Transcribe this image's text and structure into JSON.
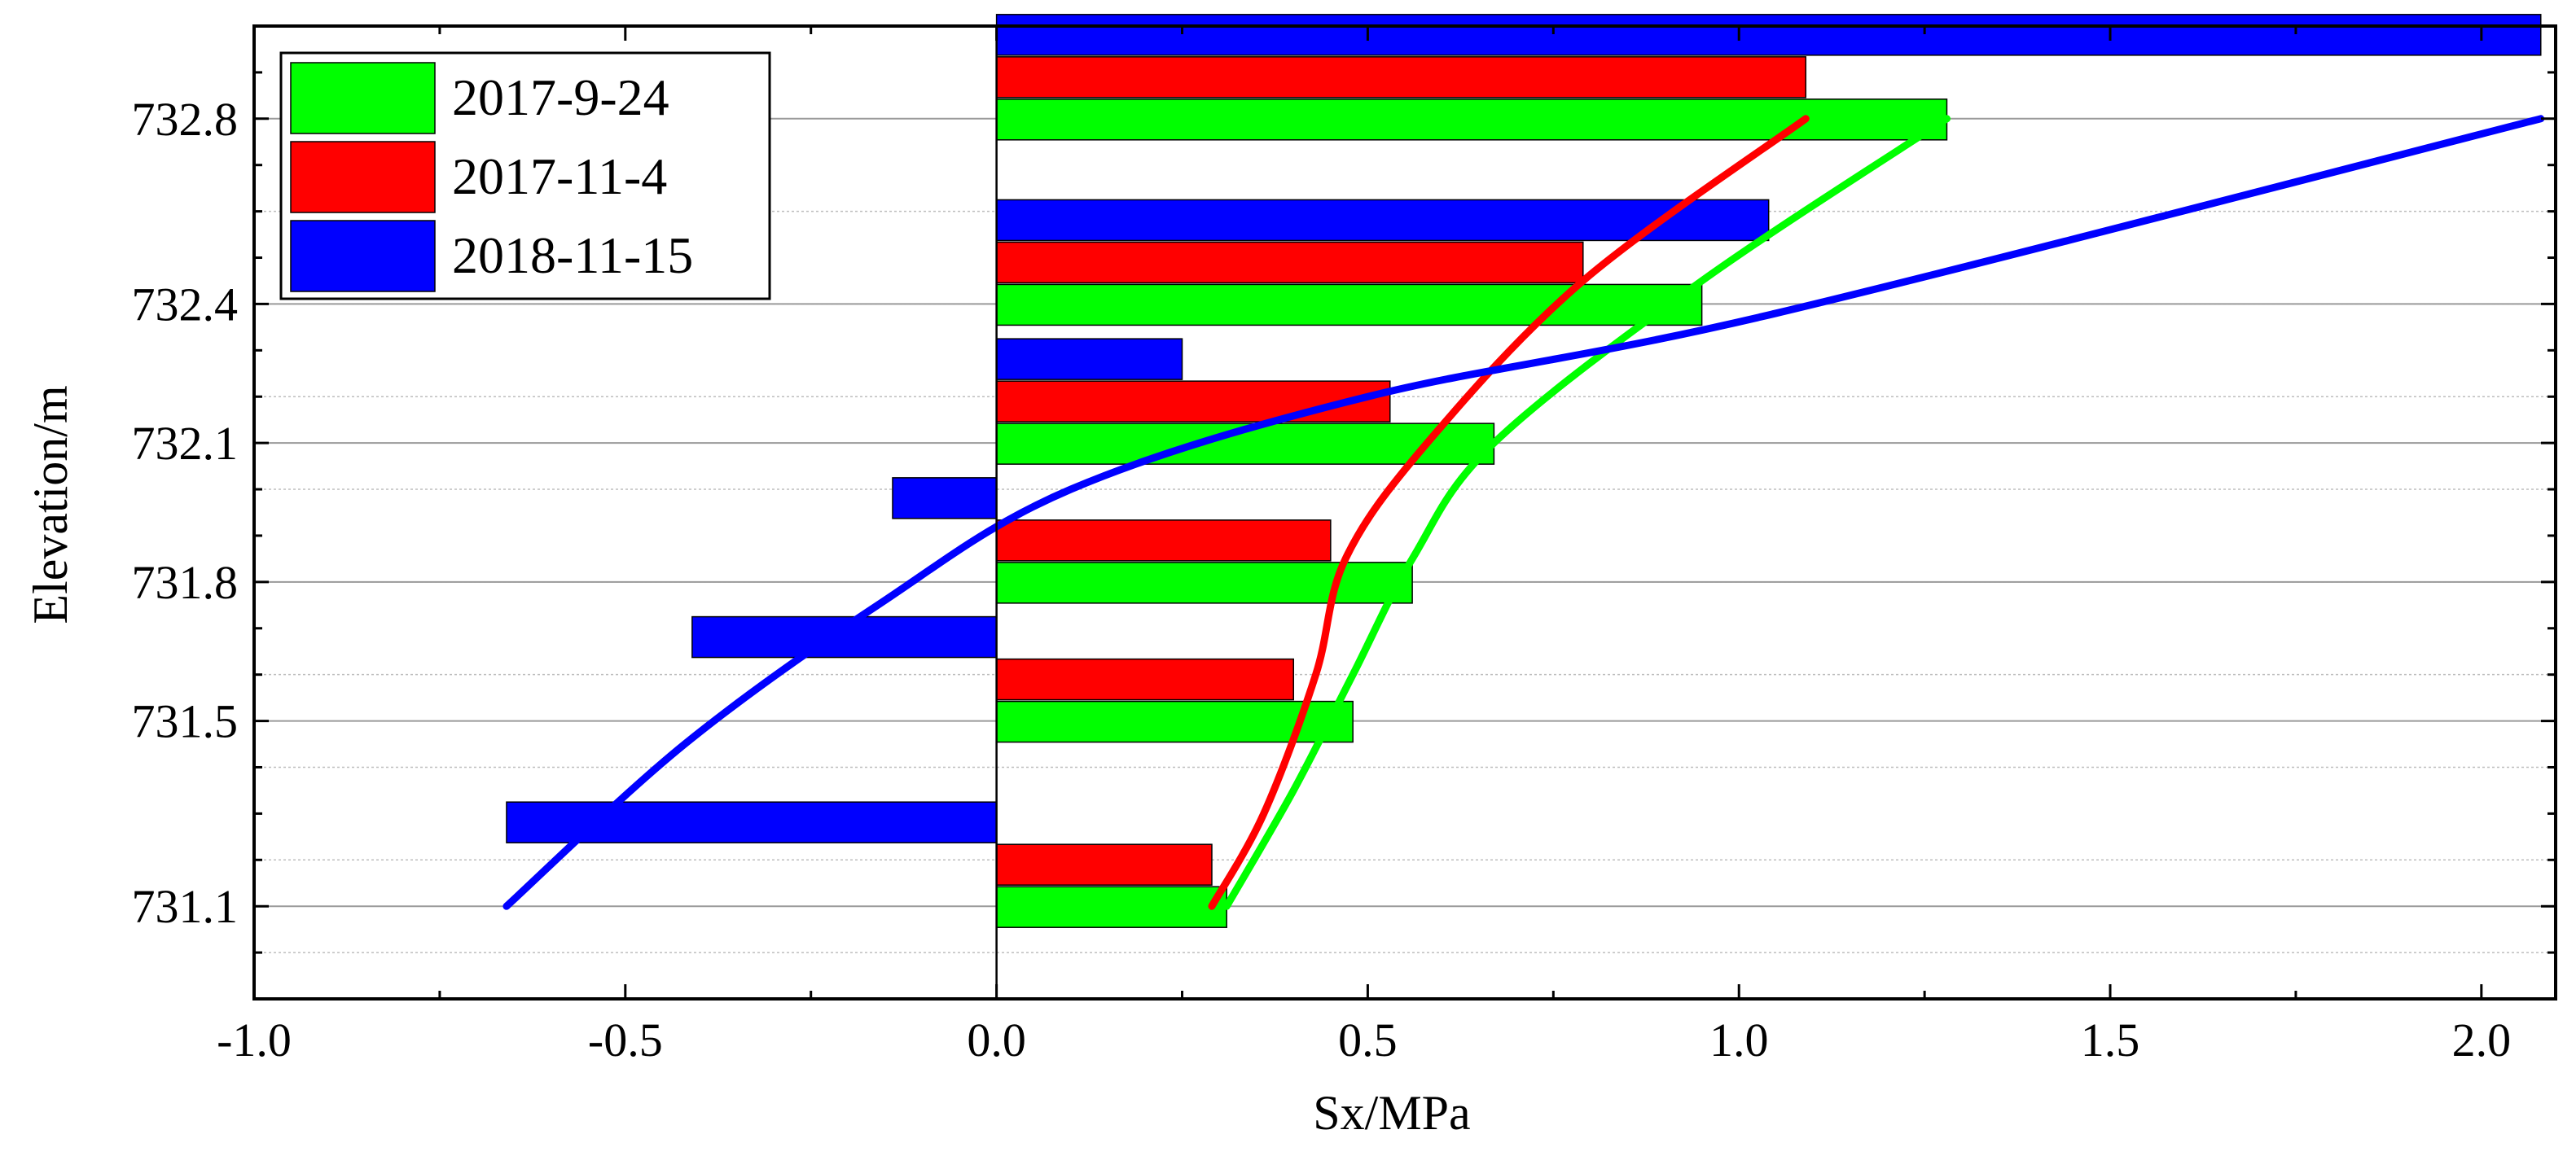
{
  "chart_data": {
    "type": "bar",
    "orientation": "horizontal",
    "title": "",
    "xlabel": "Sx/MPa",
    "ylabel": "Elevation/m",
    "xlim": [
      -1.0,
      2.1
    ],
    "ylim": [
      730.9,
      733.0
    ],
    "x_ticks": [
      "-1.0",
      "-0.5",
      "0.0",
      "0.5",
      "1.0",
      "1.5",
      "2.0"
    ],
    "y_ticks": [
      "731.1",
      "731.5",
      "731.8",
      "732.1",
      "732.4",
      "732.8"
    ],
    "grid": true,
    "legend_position": "top-left",
    "categories": [
      "731.1",
      "731.5",
      "731.8",
      "732.1",
      "732.4",
      "732.8"
    ],
    "series": [
      {
        "name": "2017-9-24",
        "color": "#00ff00",
        "values": [
          0.31,
          0.48,
          0.56,
          0.67,
          0.95,
          1.28
        ],
        "curve": [
          [
            0.31,
            731.1
          ],
          [
            0.4,
            731.35
          ],
          [
            0.48,
            731.6
          ],
          [
            0.56,
            731.85
          ],
          [
            0.67,
            732.1
          ],
          [
            0.95,
            732.45
          ],
          [
            1.28,
            732.8
          ]
        ]
      },
      {
        "name": "2017-11-4",
        "color": "#ff0000",
        "values": [
          0.29,
          0.4,
          0.45,
          0.53,
          0.79,
          1.09
        ],
        "curve": [
          [
            0.29,
            731.1
          ],
          [
            0.36,
            731.3
          ],
          [
            0.43,
            731.6
          ],
          [
            0.47,
            731.85
          ],
          [
            0.58,
            732.1
          ],
          [
            0.79,
            732.45
          ],
          [
            1.09,
            732.8
          ]
        ]
      },
      {
        "name": "2018-11-15",
        "color": "#0000ff",
        "values": [
          -0.66,
          -0.41,
          -0.14,
          0.25,
          1.04,
          2.08
        ],
        "curve": [
          [
            -0.66,
            731.1
          ],
          [
            -0.42,
            731.45
          ],
          [
            -0.16,
            731.75
          ],
          [
            0.1,
            732.0
          ],
          [
            0.5,
            732.2
          ],
          [
            1.05,
            732.38
          ],
          [
            2.08,
            732.8
          ]
        ]
      }
    ]
  }
}
